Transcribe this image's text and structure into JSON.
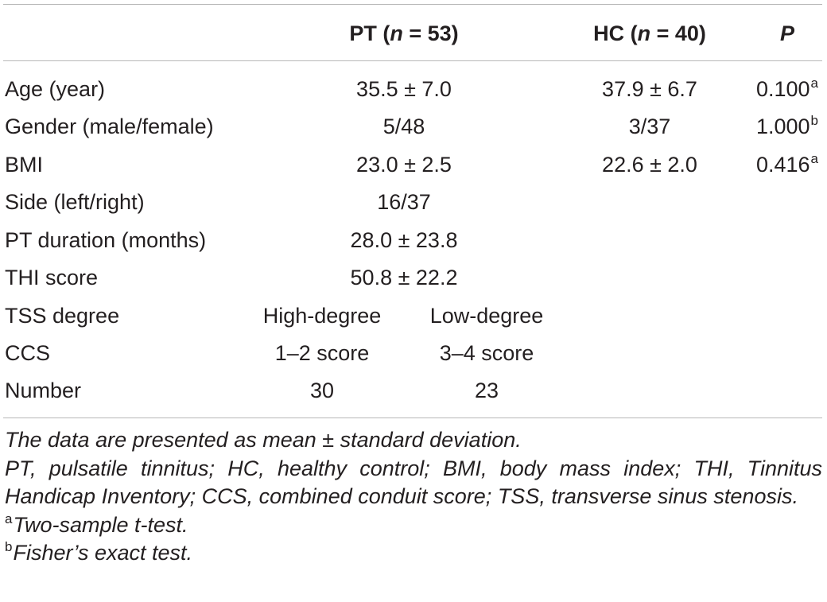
{
  "table": {
    "columns": {
      "pt_prefix": "PT (",
      "pt_n": "n",
      "pt_suffix": " = 53)",
      "hc_prefix": "HC (",
      "hc_n": "n",
      "hc_suffix": " = 40)",
      "p": "P"
    },
    "rows": [
      {
        "label": "Age (year)",
        "pt": "35.5 ± 7.0",
        "hc": "37.9 ± 6.7",
        "p": "0.100",
        "p_sup": "a"
      },
      {
        "label": "Gender (male/female)",
        "pt": "5/48",
        "hc": "3/37",
        "p": "1.000",
        "p_sup": "b"
      },
      {
        "label": "BMI",
        "pt": "23.0 ± 2.5",
        "hc": "22.6 ± 2.0",
        "p": "0.416",
        "p_sup": "a"
      },
      {
        "label": "Side (left/right)",
        "pt": "16/37"
      },
      {
        "label": "PT duration (months)",
        "pt": "28.0 ± 23.8"
      },
      {
        "label": "THI score",
        "pt": "50.8 ± 22.2"
      },
      {
        "label": "TSS degree",
        "pt_a": "High-degree",
        "pt_b": "Low-degree"
      },
      {
        "label": "CCS",
        "pt_a": "1–2 score",
        "pt_b": "3–4 score"
      },
      {
        "label": "Number",
        "pt_a": "30",
        "pt_b": "23"
      }
    ]
  },
  "notes": {
    "line1": "The data are presented as mean ± standard deviation.",
    "line2": "PT, pulsatile tinnitus; HC, healthy control; BMI, body mass index; THI, Tinnitus Handicap Inventory; CCS, combined conduit score; TSS, transverse sinus stenosis.",
    "fn_a_mark": "a",
    "fn_a_text": "Two-sample t-test.",
    "fn_b_mark": "b",
    "fn_b_text": "Fisher’s exact test."
  }
}
